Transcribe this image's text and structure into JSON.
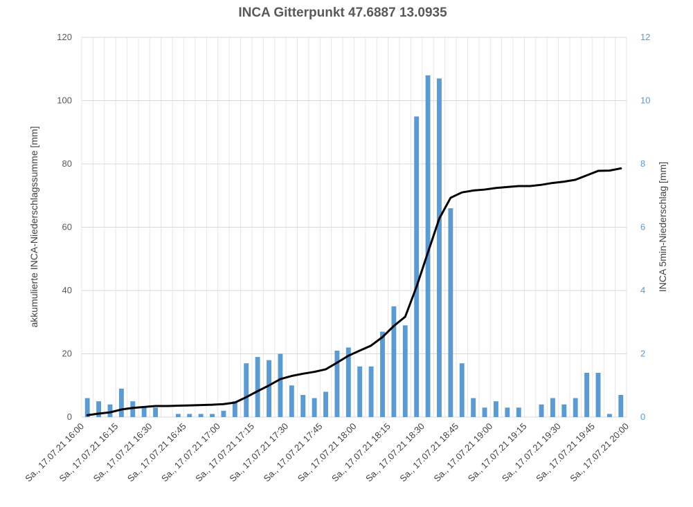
{
  "chart_data": {
    "type": "bar",
    "title": "INCA Gitterpunkt 47.6887 13.0935",
    "ylabel_left": "akkumulierte INCA-Niederschlagssumme [mm]",
    "ylabel_right": "INCA 5min-Niederschlag [mm]",
    "ylim_left": [
      0,
      120
    ],
    "ylim_right": [
      0,
      12
    ],
    "yticks_left": [
      "0",
      "20",
      "40",
      "60",
      "80",
      "100",
      "120"
    ],
    "yticks_right": [
      "0",
      "2",
      "4",
      "6",
      "8",
      "10",
      "12"
    ],
    "xtick_labels": [
      "Sa., 17.07.21 16:00",
      "Sa., 17.07.21 16:15",
      "Sa., 17.07.21 16:30",
      "Sa., 17.07.21 16:45",
      "Sa., 17.07.21 17:00",
      "Sa., 17.07.21 17:15",
      "Sa., 17.07.21 17:30",
      "Sa., 17.07.21 17:45",
      "Sa., 17.07.21 18:00",
      "Sa., 17.07.21 18:15",
      "Sa., 17.07.21 18:30",
      "Sa., 17.07.21 18:45",
      "Sa., 17.07.21 19:00",
      "Sa., 17.07.21 19:15",
      "Sa., 17.07.21 19:30",
      "Sa., 17.07.21 19:45",
      "Sa., 17.07.21 20:00"
    ],
    "grid": true,
    "colors": {
      "bars": "#5b9bd5",
      "line": "#000000",
      "right_axis": "#5b9bd5"
    },
    "series": [
      {
        "type": "bar",
        "axis": "right",
        "values": [
          0.6,
          0.5,
          0.4,
          0.9,
          0.5,
          0.3,
          0.3,
          0,
          0.1,
          0.1,
          0.1,
          0.1,
          0.2,
          0.5,
          1.7,
          1.9,
          1.8,
          2.0,
          1.0,
          0.7,
          0.6,
          0.8,
          2.1,
          2.2,
          1.6,
          1.6,
          2.7,
          3.5,
          2.9,
          9.5,
          10.8,
          10.7,
          6.6,
          1.7,
          0.6,
          0.3,
          0.5,
          0.3,
          0.3,
          0,
          0.4,
          0.6,
          0.4,
          0.6,
          1.4,
          1.4,
          0.1,
          0.7
        ]
      },
      {
        "type": "line",
        "axis": "left",
        "values": [
          0.6,
          1.1,
          1.5,
          2.4,
          2.9,
          3.2,
          3.5,
          3.5,
          3.6,
          3.7,
          3.8,
          3.9,
          4.1,
          4.6,
          6.3,
          8.2,
          10.0,
          12.0,
          13.0,
          13.7,
          14.3,
          15.1,
          17.2,
          19.4,
          21.0,
          22.6,
          25.3,
          28.8,
          31.7,
          41.2,
          52.0,
          62.7,
          69.3,
          71.0,
          71.6,
          71.9,
          72.4,
          72.7,
          73.0,
          73.0,
          73.4,
          74.0,
          74.4,
          75.0,
          76.4,
          77.8,
          77.9,
          78.6
        ]
      }
    ]
  }
}
